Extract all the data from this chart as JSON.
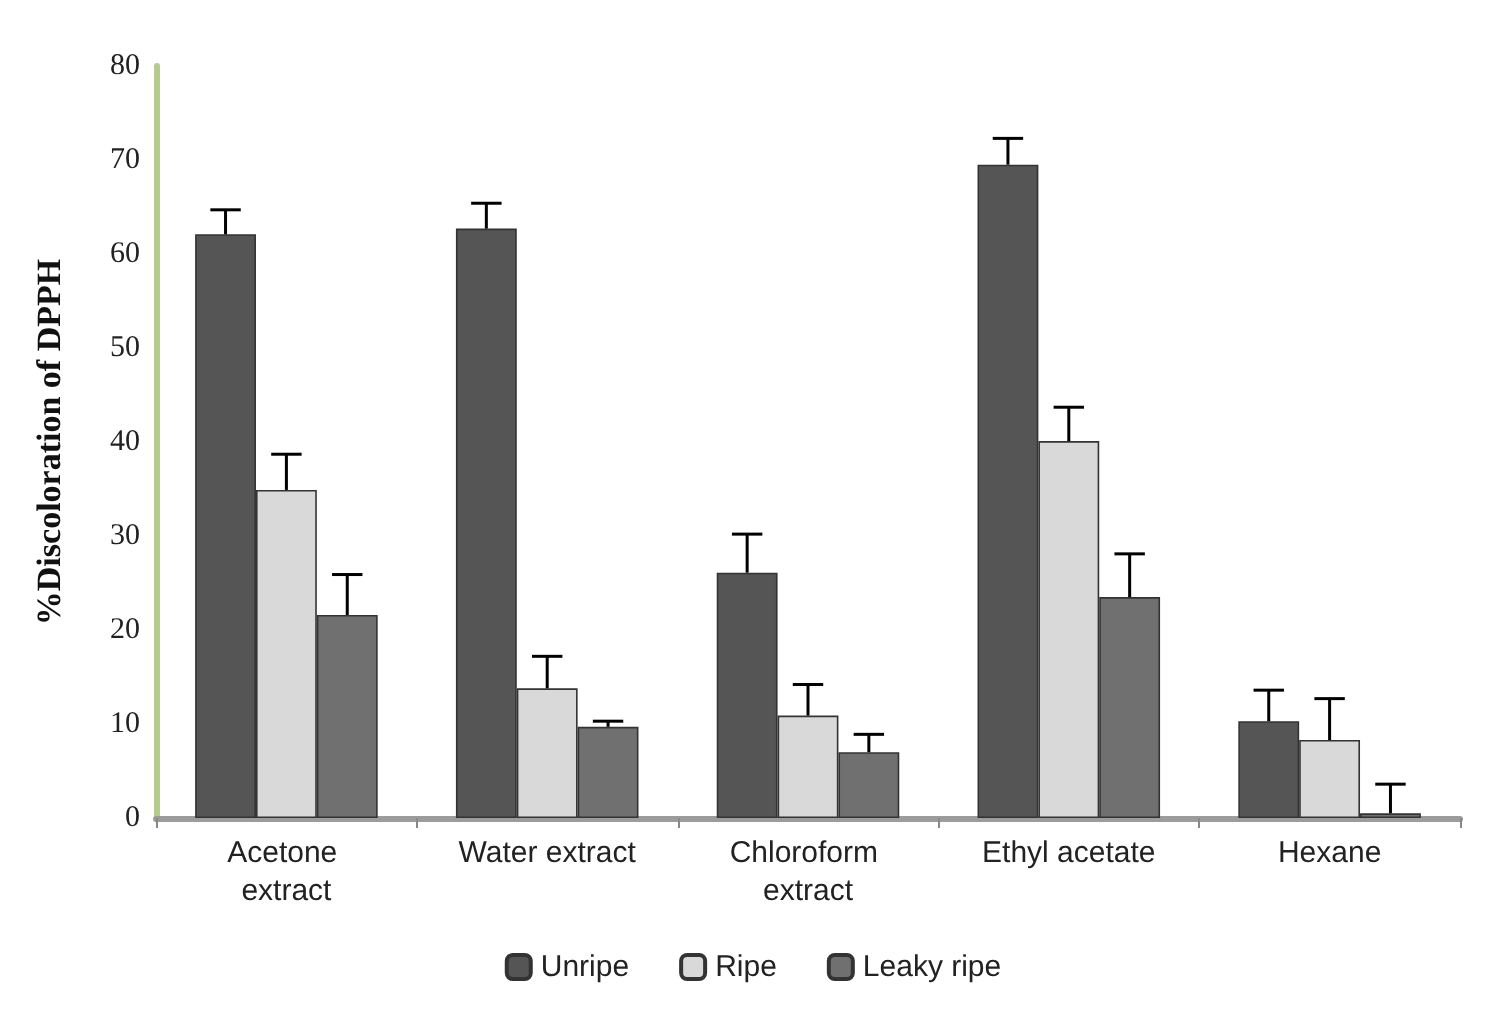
{
  "chart_data": {
    "type": "bar",
    "ylabel": "%Discoloration of DPPH",
    "categories": [
      "Acetone extract",
      "Water extract",
      "Chloroform extract",
      "Ethyl acetate",
      "Hexane"
    ],
    "series": [
      {
        "name": "Unripe",
        "color": "#555555",
        "values": [
          62.1,
          62.7,
          26.1,
          69.5,
          10.3
        ],
        "errors": [
          [
            62.1,
            64.7
          ],
          [
            62.7,
            65.4
          ],
          [
            26.1,
            30.2
          ],
          [
            69.5,
            72.3
          ],
          [
            10.3,
            13.6
          ]
        ]
      },
      {
        "name": "Ripe",
        "color": "#d9d9d9",
        "values": [
          34.9,
          13.8,
          10.9,
          40.1,
          8.3
        ],
        "errors": [
          [
            34.9,
            38.7
          ],
          [
            13.8,
            17.2
          ],
          [
            10.9,
            14.2
          ],
          [
            40.1,
            43.7
          ],
          [
            8.3,
            12.7
          ]
        ]
      },
      {
        "name": "Leaky ripe",
        "color": "#707070",
        "values": [
          21.6,
          9.7,
          7.0,
          23.5,
          0.5
        ],
        "errors": [
          [
            21.6,
            25.9
          ],
          [
            9.7,
            10.3
          ],
          [
            7.0,
            8.9
          ],
          [
            23.5,
            28.1
          ],
          [
            0.5,
            3.6
          ]
        ]
      }
    ],
    "ylim": [
      0,
      80
    ],
    "yticks": [
      0,
      10,
      20,
      30,
      40,
      50,
      60,
      70,
      80
    ],
    "grid": false,
    "legend": "bottom"
  }
}
